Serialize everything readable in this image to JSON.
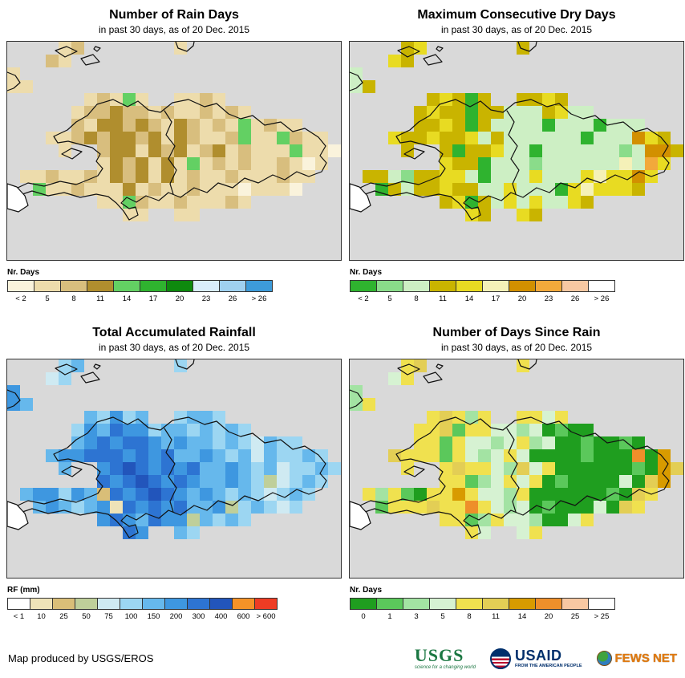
{
  "page": {
    "credit": "Map produced by USGS/EROS"
  },
  "map": {
    "sea_color": "#D9D9D9",
    "coast_color": "#111111",
    "cell_size": 16
  },
  "panels": [
    {
      "id": "rain-days",
      "title": "Number of Rain Days",
      "subtitle": "in past 30 days, as of 20 Dec. 2015",
      "legend_title": "Nr. Days",
      "legend": [
        {
          "label": "< 2",
          "color": "#FAF3DC"
        },
        {
          "label": "5",
          "color": "#EDDCAC"
        },
        {
          "label": "8",
          "color": "#D8BE7E"
        },
        {
          "label": "11",
          "color": "#B08E2E"
        },
        {
          "label": "14",
          "color": "#63D063"
        },
        {
          "label": "17",
          "color": "#2FB32F"
        },
        {
          "label": "20",
          "color": "#0E8A0E"
        },
        {
          "label": "23",
          "color": "#D9EDFB"
        },
        {
          "label": "26",
          "color": "#9FD0EF"
        },
        {
          "label": "> 26",
          "color": "#3D9BD9"
        }
      ],
      "palette": {
        "a": "#FAF3DC",
        "b": "#EDDCAC",
        "c": "#D8BE7E",
        "d": "#B08E2E",
        "e": "#63D063",
        "f": "#2FB32F",
        "g": "#0E8A0E"
      },
      "grid": [
        "....bc.......b............",
        "...cb.....................",
        "b.........................",
        "bb........................",
        "......bcbeb..bbcb.........",
        ".....bccdccbcbbcbcb.......",
        ".....cbddcdcbdcbcbebcbb...",
        "...bbcdcddcdbdcbbcebbecbb.",
        "....b..cddbdcdbcdbcbbbebba",
        ".......bdcdbdbebcbcbbcbab.",
        ".bbcbbcbdcdbdbcbbcbbbcbb..",
        "..ebbcbbbdbcbbcbbbabbba...",
        ".......bbecbbcbbbcb.......",
        ".........bb..bb..........."
      ]
    },
    {
      "id": "dry-days",
      "title": "Maximum Consecutive Dry Days",
      "subtitle": "in past 30 days, as of 20 Dec. 2015",
      "legend_title": "Nr. Days",
      "legend": [
        {
          "label": "< 2",
          "color": "#2FB32F"
        },
        {
          "label": "5",
          "color": "#8ADC8A"
        },
        {
          "label": "8",
          "color": "#CDEFC4"
        },
        {
          "label": "11",
          "color": "#C9B400"
        },
        {
          "label": "14",
          "color": "#E8DB22"
        },
        {
          "label": "17",
          "color": "#F5F1B8"
        },
        {
          "label": "20",
          "color": "#D29000"
        },
        {
          "label": "23",
          "color": "#F2A93B"
        },
        {
          "label": "26",
          "color": "#F7C8A2"
        },
        {
          "label": "> 26",
          "color": "#FFFFFF"
        }
      ],
      "palette": {
        "g": "#2FB32F",
        "l": "#8ADC8A",
        "p": "#CDEFC4",
        "m": "#C9B400",
        "y": "#E8DB22",
        "q": "#F5F1B8",
        "o": "#D29000",
        "O": "#F2A93B",
        "s": "#F7C8A2",
        "w": "#FFFFFF"
      },
      "grid": [
        "....my.......m............",
        "...ym.....................",
        "p.........................",
        "pm........................",
        "......mymgm..mmym.........",
        ".....mymmgmmpppmypp.......",
        ".....mmymgmppppgpppgppp...",
        "...ymmymmypmppppppgpppoym.",
        "....m..mgmmyppgpppppplpoom",
        ".......ymmgppplppppppqpOy.",
        ".mmplmmyypgpppypppyqyyoy..",
        "..gmpmmymmppypppgyqyyym...",
        ".......mygmpypyppym.......",
        ".........ym..ym..........."
      ]
    },
    {
      "id": "rainfall",
      "title": "Total Accumulated Rainfall",
      "subtitle": "in past 30 days, as of 20 Dec. 2015",
      "legend_title": "RF (mm)",
      "legend": [
        {
          "label": "< 1",
          "color": "#FFFFFF"
        },
        {
          "label": "10",
          "color": "#EFE3B8"
        },
        {
          "label": "25",
          "color": "#D9BE78"
        },
        {
          "label": "50",
          "color": "#BFCF9A"
        },
        {
          "label": "75",
          "color": "#CFEAF2"
        },
        {
          "label": "100",
          "color": "#9CD6F2"
        },
        {
          "label": "150",
          "color": "#66B8EC"
        },
        {
          "label": "200",
          "color": "#3E97E0"
        },
        {
          "label": "300",
          "color": "#2D74D2"
        },
        {
          "label": "400",
          "color": "#2255BB"
        },
        {
          "label": "600",
          "color": "#F59227"
        },
        {
          "label": "> 600",
          "color": "#EE3C24"
        }
      ],
      "palette": {
        "w": "#FFFFFF",
        "t": "#EFE3B8",
        "T": "#D9BE78",
        "k": "#BFCF9A",
        "p": "#CFEAF2",
        "s": "#9CD6F2",
        "l": "#66B8EC",
        "m": "#3E97E0",
        "d": "#2D74D2",
        "D": "#2255BB",
        "o": "#F59227",
        "r": "#EE3C24"
      },
      "grid": [
        "....sl.......s............",
        "...ps.....................",
        "m.........................",
        "ml........................",
        "......lsmsl..slls.........",
        ".....smldmmsllslsls.......",
        ".....lmdmddmlmllslsplss...",
        "...lmmdddmdmdllmlslplssls.",
        "....l..mdDdmdmdllmlslpssls",
        ".......dmdDdmdmllmlskpsls.",
        ".lmmsmlTdmdDdmlmlslspsls..",
        "..lmlslmtdmdmdllmkslsps...",
        ".......mdmldmmklsls.......",
        ".........dm..ls..........."
      ]
    },
    {
      "id": "days-since-rain",
      "title": "Number of Days Since Rain",
      "subtitle": "in past 30 days, as of 20 Dec. 2015",
      "legend_title": "Nr. Days",
      "legend": [
        {
          "label": "0",
          "color": "#1F9E1F"
        },
        {
          "label": "1",
          "color": "#5BC85B"
        },
        {
          "label": "3",
          "color": "#A3E3A3"
        },
        {
          "label": "5",
          "color": "#D6F2D2"
        },
        {
          "label": "8",
          "color": "#F0E14F"
        },
        {
          "label": "11",
          "color": "#E3CE55"
        },
        {
          "label": "14",
          "color": "#D89B00"
        },
        {
          "label": "20",
          "color": "#EE8F2A"
        },
        {
          "label": "25",
          "color": "#F7C8A2"
        },
        {
          "label": "> 25",
          "color": "#FFFFFF"
        }
      ],
      "palette": {
        "G": "#1F9E1F",
        "g": "#5BC85B",
        "l": "#A3E3A3",
        "p": "#D6F2D2",
        "y": "#F0E14F",
        "t": "#E3CE55",
        "a": "#D89B00",
        "o": "#EE8F2A",
        "s": "#F7C8A2",
        "w": "#FFFFFF"
      },
      "grid": [
        "....yt.......y............",
        "...py.....................",
        "l.........................",
        "ly........................",
        "......ytyly..yypy.........",
        ".....yytgyypplpGgGG.......",
        ".....yygypplpylpGGgGGgG...",
        "...tyyygyplpypGGGGgGGGoGa.",
        "....y..ytyypltpyGGGGGGgGat",
        ".......yyglpypyGgGGGGpGta.",
        ".ylygGyyaypplyGGGGGGgGty..",
        "..gyyytyyoyplpGgGGGpGty...",
        ".......yyglypplGGpy.......",
        ".........yp..py..........."
      ]
    }
  ],
  "footer_logos": {
    "usgs": {
      "name": "USGS",
      "tagline": "science for a changing world",
      "brand_color": "#1B7742"
    },
    "usaid": {
      "name": "USAID",
      "tagline": "FROM THE AMERICAN PEOPLE",
      "brand_color": "#002F6C"
    },
    "fews": {
      "name": "FEWS NET",
      "brand_color": "#E07A10"
    }
  }
}
